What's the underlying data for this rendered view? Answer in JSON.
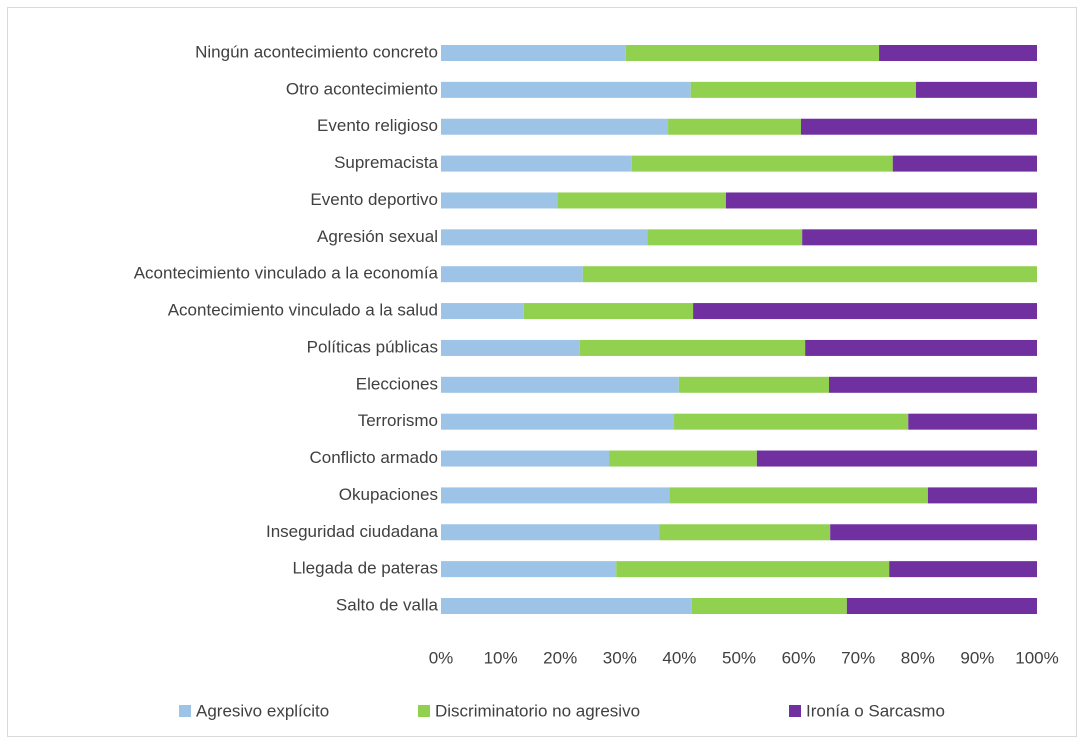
{
  "chart_data": {
    "type": "bar",
    "orientation": "horizontal",
    "stacked": true,
    "categories": [
      "Ningún acontecimiento concreto",
      "Otro acontecimiento",
      "Evento religioso",
      "Supremacista",
      "Evento deportivo",
      "Agresión sexual",
      "Acontecimiento vinculado a la economía",
      "Acontecimiento vinculado a la salud",
      "Políticas públicas",
      "Elecciones",
      "Terrorismo",
      "Conflicto armado",
      "Okupaciones",
      "Inseguridad ciudadana",
      "Llegada de pateras",
      "Salto de valla"
    ],
    "series": [
      {
        "name": "Agresivo explícito",
        "color": "#9dc3e6",
        "values": [
          31.0,
          41.9,
          38.1,
          32.0,
          19.5,
          34.6,
          23.8,
          13.9,
          23.3,
          39.9,
          39.1,
          28.2,
          38.3,
          36.6,
          29.4,
          42.1
        ]
      },
      {
        "name": "Discriminatorio no agresivo",
        "color": "#92d050",
        "values": [
          42.5,
          37.8,
          22.3,
          43.8,
          28.3,
          26.0,
          76.2,
          28.4,
          37.8,
          25.2,
          39.3,
          24.8,
          43.4,
          28.7,
          45.8,
          26.0
        ]
      },
      {
        "name": "Ironía o Sarcasmo",
        "color": "#7030a0",
        "values": [
          26.5,
          20.3,
          39.6,
          24.2,
          52.2,
          39.4,
          0,
          57.7,
          38.9,
          34.9,
          21.6,
          47.0,
          18.3,
          34.7,
          24.8,
          31.9
        ]
      }
    ],
    "xlim": [
      0,
      100
    ],
    "xticks": [
      {
        "value": 0,
        "label": "0%"
      },
      {
        "value": 10,
        "label": "10%"
      },
      {
        "value": 20,
        "label": "20%"
      },
      {
        "value": 30,
        "label": "30%"
      },
      {
        "value": 40,
        "label": "40%"
      },
      {
        "value": 50,
        "label": "50%"
      },
      {
        "value": 60,
        "label": "60%"
      },
      {
        "value": 70,
        "label": "70%"
      },
      {
        "value": 80,
        "label": "80%"
      },
      {
        "value": 90,
        "label": "90%"
      },
      {
        "value": 100,
        "label": "100%"
      }
    ],
    "legend": "bottom"
  }
}
